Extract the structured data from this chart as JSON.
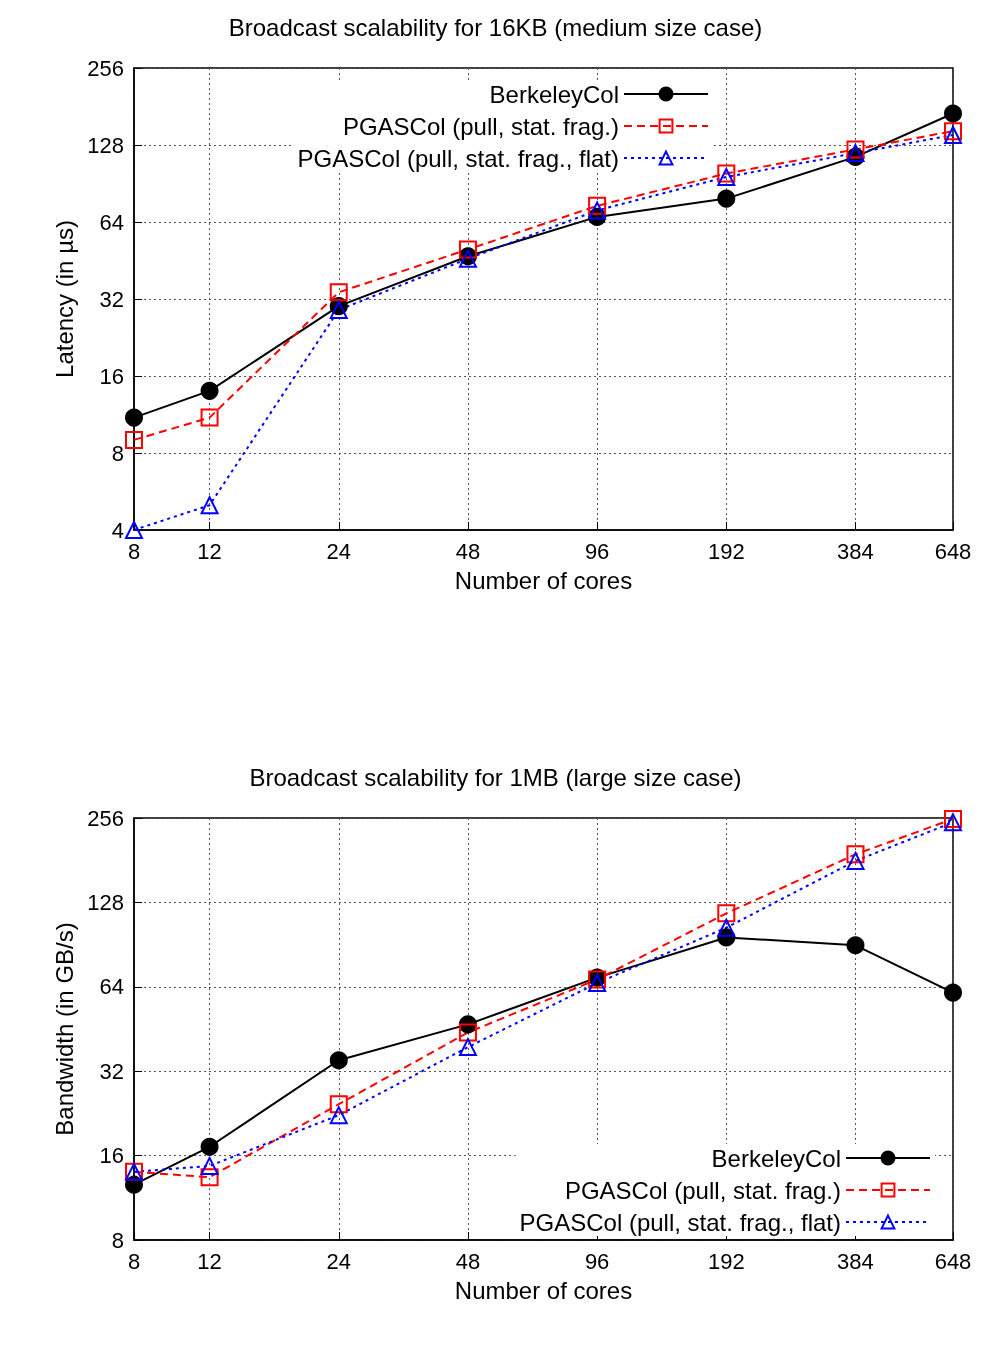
{
  "chart_data": [
    {
      "type": "line",
      "title": "Broadcast scalability for 16KB (medium size case)",
      "xlabel": "Number of cores",
      "ylabel": "Latency (in µs)",
      "log": "xy",
      "grid": true,
      "legend": "top right",
      "xlim": [
        8,
        648
      ],
      "xticks": [
        8,
        12,
        24,
        48,
        96,
        192,
        384,
        648
      ],
      "ylim": [
        4,
        256
      ],
      "yticks": [
        4,
        8,
        16,
        32,
        64,
        128,
        256
      ],
      "x": [
        8,
        12,
        24,
        48,
        96,
        192,
        384,
        648
      ],
      "series": [
        {
          "name": "BerkeleyCol",
          "color": "#000000",
          "marker": "circle",
          "line_style": "solid",
          "values": [
            11,
            14,
            30,
            47,
            67,
            79,
            115,
            170
          ]
        },
        {
          "name": "PGASCol (pull, stat. frag.)",
          "color": "#ff0000",
          "marker": "square",
          "line_style": "dashed",
          "values": [
            9,
            11,
            34,
            50,
            74,
            99,
            123,
            145
          ]
        },
        {
          "name": "PGASCol (pull, stat. frag., flat)",
          "color": "#0000ff",
          "marker": "triangle",
          "line_style": "dotted",
          "values": [
            4,
            5,
            29,
            46,
            71,
            96,
            119,
            140
          ]
        }
      ]
    },
    {
      "type": "line",
      "title": "Broadcast scalability for 1MB (large size case)",
      "xlabel": "Number of cores",
      "ylabel": "Bandwidth (in GB/s)",
      "log": "xy",
      "grid": true,
      "legend": "bottom right",
      "xlim": [
        8,
        648
      ],
      "xticks": [
        8,
        12,
        24,
        48,
        96,
        192,
        384,
        648
      ],
      "ylim": [
        8,
        256
      ],
      "yticks": [
        8,
        16,
        32,
        64,
        128,
        256
      ],
      "x": [
        8,
        12,
        24,
        48,
        96,
        192,
        384,
        648
      ],
      "series": [
        {
          "name": "BerkeleyCol",
          "color": "#000000",
          "marker": "circle",
          "line_style": "solid",
          "values": [
            12.6,
            17.2,
            35,
            47,
            69,
            96,
            90,
            61
          ]
        },
        {
          "name": "PGASCol (pull, stat. frag.)",
          "color": "#ff0000",
          "marker": "square",
          "line_style": "dashed",
          "values": [
            14,
            13.4,
            24.4,
            44,
            68,
            117,
            190,
            254
          ]
        },
        {
          "name": "PGASCol (pull, stat. frag., flat)",
          "color": "#0000ff",
          "marker": "triangle",
          "line_style": "dotted",
          "values": [
            14,
            14.7,
            22.3,
            39,
            66,
            104,
            180,
            247
          ]
        }
      ]
    }
  ]
}
